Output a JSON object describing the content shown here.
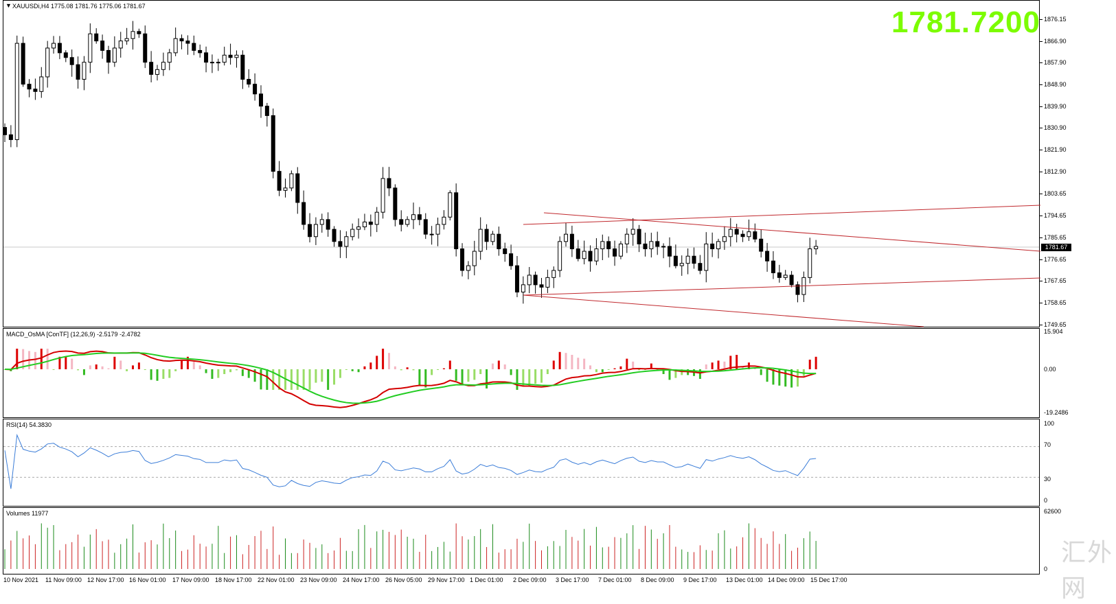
{
  "chart_header": {
    "symbol_title": "XAUUSDi,H4",
    "ohlc": "1775.08 1781.76 1775.06 1781.67"
  },
  "current_price_big": "1781.7200",
  "current_price_tag": "1781.67",
  "macd_label": "MACD_OsMA [ConTF] (12,26,9) -2.5179 -2.4782",
  "rsi_label": "RSI(14) 54.3830",
  "volume_label": "Volumes 11977",
  "watermark": "汇外网",
  "colors": {
    "bull": "#ffffff",
    "bear": "#000000",
    "channel": "#c0282d",
    "macd_line": "#d40000",
    "signal_line": "#22cc22",
    "rsi_line": "#3b7dd8",
    "price_text": "#7cfc00",
    "hist_up_strong": "#dd0000",
    "hist_up_weak": "#f4b6c2",
    "hist_down_strong": "#33bb22",
    "hist_down_weak": "#99dd66",
    "volume_bar": "#1a8a1a",
    "volume_bar_alt": "#cc2222"
  },
  "chart_data": [
    {
      "type": "candlestick",
      "title": "XAUUSDi,H4",
      "y_ticks": [
        "1876.15",
        "1866.90",
        "1857.90",
        "1848.90",
        "1839.90",
        "1830.90",
        "1821.90",
        "1812.90",
        "1803.65",
        "1794.65",
        "1785.65",
        "1776.65",
        "1767.65",
        "1758.65",
        "1749.65"
      ],
      "ylim": [
        1749.65,
        1876.15
      ],
      "x_ticks": [
        "10 Nov 2021",
        "11 Nov 09:00",
        "12 Nov 17:00",
        "16 Nov 01:00",
        "17 Nov 09:00",
        "18 Nov 17:00",
        "22 Nov 01:00",
        "23 Nov 09:00",
        "24 Nov 17:00",
        "26 Nov 05:00",
        "29 Nov 17:00",
        "1 Dec 01:00",
        "2 Dec 09:00",
        "3 Dec 17:00",
        "7 Dec 01:00",
        "8 Dec 09:00",
        "9 Dec 17:00",
        "13 Dec 01:00",
        "14 Dec 09:00",
        "15 Dec 17:00"
      ],
      "close_path": [
        1828,
        1826,
        1866,
        1849,
        1847,
        1846,
        1852,
        1864,
        1866,
        1862,
        1860,
        1857,
        1851,
        1858,
        1870,
        1867,
        1863,
        1858,
        1864,
        1867,
        1868,
        1871,
        1870,
        1858,
        1853,
        1855,
        1858,
        1862,
        1868,
        1867,
        1866,
        1863,
        1862,
        1858,
        1858,
        1858,
        1861,
        1860,
        1861,
        1851,
        1849,
        1845,
        1840,
        1836,
        1813,
        1805,
        1806,
        1812,
        1800,
        1791,
        1786,
        1791,
        1793,
        1789,
        1784,
        1782,
        1786,
        1789,
        1790,
        1792,
        1791,
        1796,
        1810,
        1806,
        1793,
        1791,
        1793,
        1795,
        1793,
        1787,
        1787,
        1791,
        1794,
        1804,
        1781,
        1772,
        1774,
        1780,
        1789,
        1784,
        1787,
        1781,
        1779,
        1774,
        1763,
        1766,
        1770,
        1766,
        1765,
        1769,
        1772,
        1784,
        1787,
        1781,
        1777,
        1780,
        1776,
        1781,
        1784,
        1781,
        1778,
        1783,
        1787,
        1789,
        1783,
        1781,
        1784,
        1782,
        1782,
        1778,
        1774,
        1775,
        1778,
        1775,
        1772,
        1783,
        1781,
        1784,
        1786,
        1789,
        1787,
        1786,
        1788,
        1785,
        1780,
        1776,
        1771,
        1769,
        1770,
        1766,
        1762,
        1769,
        1781,
        1782
      ],
      "channel_lines": "descending channel with upper/lower bounds and a rising support line"
    },
    {
      "type": "line",
      "title": "MACD_OsMA [ConTF] (12,26,9) -2.5179 -2.4782",
      "y_ticks": [
        "15.904",
        "0.00",
        "-19.2486"
      ],
      "ylim": [
        -19.2486,
        15.904
      ]
    },
    {
      "type": "line",
      "title": "RSI(14) 54.3830",
      "y_ticks": [
        "100",
        "70",
        "30",
        "0"
      ],
      "ylim": [
        0,
        100
      ]
    },
    {
      "type": "bar",
      "title": "Volumes 11977",
      "y_ticks": [
        "62600",
        "0"
      ],
      "ylim": [
        0,
        62600
      ]
    }
  ]
}
